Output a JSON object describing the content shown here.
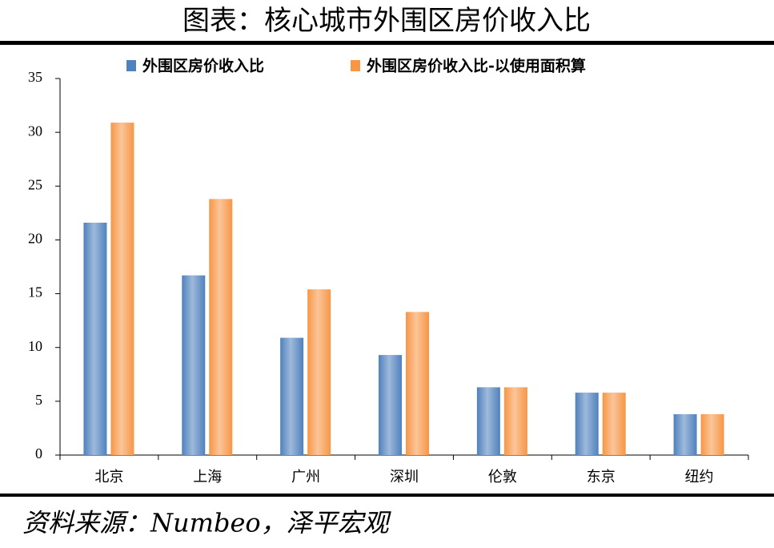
{
  "chart_data": {
    "type": "bar",
    "title": "图表：核心城市外围区房价收入比",
    "categories": [
      "北京",
      "上海",
      "广州",
      "深圳",
      "伦敦",
      "东京",
      "纽约"
    ],
    "series": [
      {
        "name": "外围区房价收入比",
        "color": "#4f81bd",
        "values": [
          21.6,
          16.7,
          10.9,
          9.3,
          6.3,
          5.8,
          3.8
        ]
      },
      {
        "name": "外围区房价收入比-以使用面积算",
        "color": "#f79646",
        "values": [
          30.9,
          23.8,
          15.4,
          13.3,
          6.3,
          5.8,
          3.8
        ]
      }
    ],
    "ylim": [
      0,
      35
    ],
    "yticks": [
      0,
      5,
      10,
      15,
      20,
      25,
      30,
      35
    ],
    "grid": false,
    "legend": "top",
    "source": "资料来源：Numbeo，泽平宏观"
  }
}
